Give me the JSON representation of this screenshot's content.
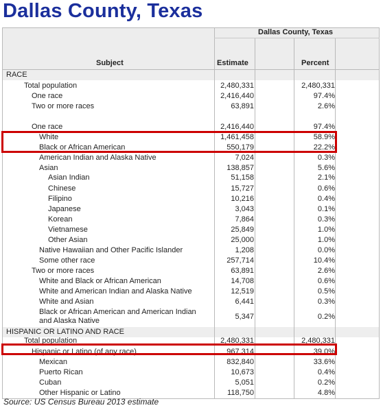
{
  "title": "Dallas County, Texas",
  "source": "Source: US Census Bureau 2013 estimate",
  "header": {
    "group": "Dallas County, Texas",
    "subject": "Subject",
    "estimate": "Estimate",
    "percent": "Percent"
  },
  "rows": [
    {
      "subject": "RACE",
      "indent": 0,
      "estimate": "",
      "percent": ""
    },
    {
      "subject": "Total population",
      "indent": 1,
      "estimate": "2,480,331",
      "percent": "2,480,331"
    },
    {
      "subject": "One race",
      "indent": 2,
      "estimate": "2,416,440",
      "percent": "97.4%"
    },
    {
      "subject": "Two or more races",
      "indent": 2,
      "estimate": "63,891",
      "percent": "2.6%"
    },
    {
      "subject": "",
      "indent": 0,
      "estimate": "",
      "percent": ""
    },
    {
      "subject": "One race",
      "indent": 2,
      "estimate": "2,416,440",
      "percent": "97.4%"
    },
    {
      "subject": "White",
      "indent": 3,
      "estimate": "1,461,458",
      "percent": "58.9%"
    },
    {
      "subject": "Black or African American",
      "indent": 3,
      "estimate": "550,179",
      "percent": "22.2%"
    },
    {
      "subject": "American Indian and Alaska Native",
      "indent": 3,
      "estimate": "7,024",
      "percent": "0.3%"
    },
    {
      "subject": "Asian",
      "indent": 3,
      "estimate": "138,857",
      "percent": "5.6%"
    },
    {
      "subject": "Asian Indian",
      "indent": 4,
      "estimate": "51,158",
      "percent": "2.1%"
    },
    {
      "subject": "Chinese",
      "indent": 4,
      "estimate": "15,727",
      "percent": "0.6%"
    },
    {
      "subject": "Filipino",
      "indent": 4,
      "estimate": "10,216",
      "percent": "0.4%"
    },
    {
      "subject": "Japanese",
      "indent": 4,
      "estimate": "3,043",
      "percent": "0.1%"
    },
    {
      "subject": "Korean",
      "indent": 4,
      "estimate": "7,864",
      "percent": "0.3%"
    },
    {
      "subject": "Vietnamese",
      "indent": 4,
      "estimate": "25,849",
      "percent": "1.0%"
    },
    {
      "subject": "Other Asian",
      "indent": 4,
      "estimate": "25,000",
      "percent": "1.0%"
    },
    {
      "subject": "Native Hawaiian and Other Pacific Islander",
      "indent": 3,
      "estimate": "1,208",
      "percent": "0.0%"
    },
    {
      "subject": "Some other race",
      "indent": 3,
      "estimate": "257,714",
      "percent": "10.4%"
    },
    {
      "subject": "Two or more races",
      "indent": 2,
      "estimate": "63,891",
      "percent": "2.6%"
    },
    {
      "subject": "White and Black or African American",
      "indent": 3,
      "estimate": "14,708",
      "percent": "0.6%"
    },
    {
      "subject": "White and American Indian and Alaska Native",
      "indent": 3,
      "estimate": "12,519",
      "percent": "0.5%"
    },
    {
      "subject": "White and Asian",
      "indent": 3,
      "estimate": "6,441",
      "percent": "0.3%"
    },
    {
      "subject": "Black or African American and American Indian and Alaska Native",
      "indent": 3,
      "estimate": "5,347",
      "percent": "0.2%"
    },
    {
      "subject": "HISPANIC OR LATINO AND RACE",
      "indent": 0,
      "estimate": "",
      "percent": ""
    },
    {
      "subject": "Total population",
      "indent": 1,
      "estimate": "2,480,331",
      "percent": "2,480,331"
    },
    {
      "subject": "Hispanic or Latino (of any race)",
      "indent": 2,
      "estimate": "967,314",
      "percent": "39.0%"
    },
    {
      "subject": "Mexican",
      "indent": 3,
      "estimate": "832,840",
      "percent": "33.6%"
    },
    {
      "subject": "Puerto Rican",
      "indent": 3,
      "estimate": "10,673",
      "percent": "0.4%"
    },
    {
      "subject": "Cuban",
      "indent": 3,
      "estimate": "5,051",
      "percent": "0.2%"
    },
    {
      "subject": "Other Hispanic or Latino",
      "indent": 3,
      "estimate": "118,750",
      "percent": "4.8%"
    }
  ],
  "highlighted_rows": [
    [
      "White",
      "Black or African American"
    ],
    [
      "Hispanic or Latino (of any race)"
    ]
  ],
  "colors": {
    "title": "#1b2f9c",
    "highlight": "#cc0000",
    "header_bg": "#ededed"
  }
}
